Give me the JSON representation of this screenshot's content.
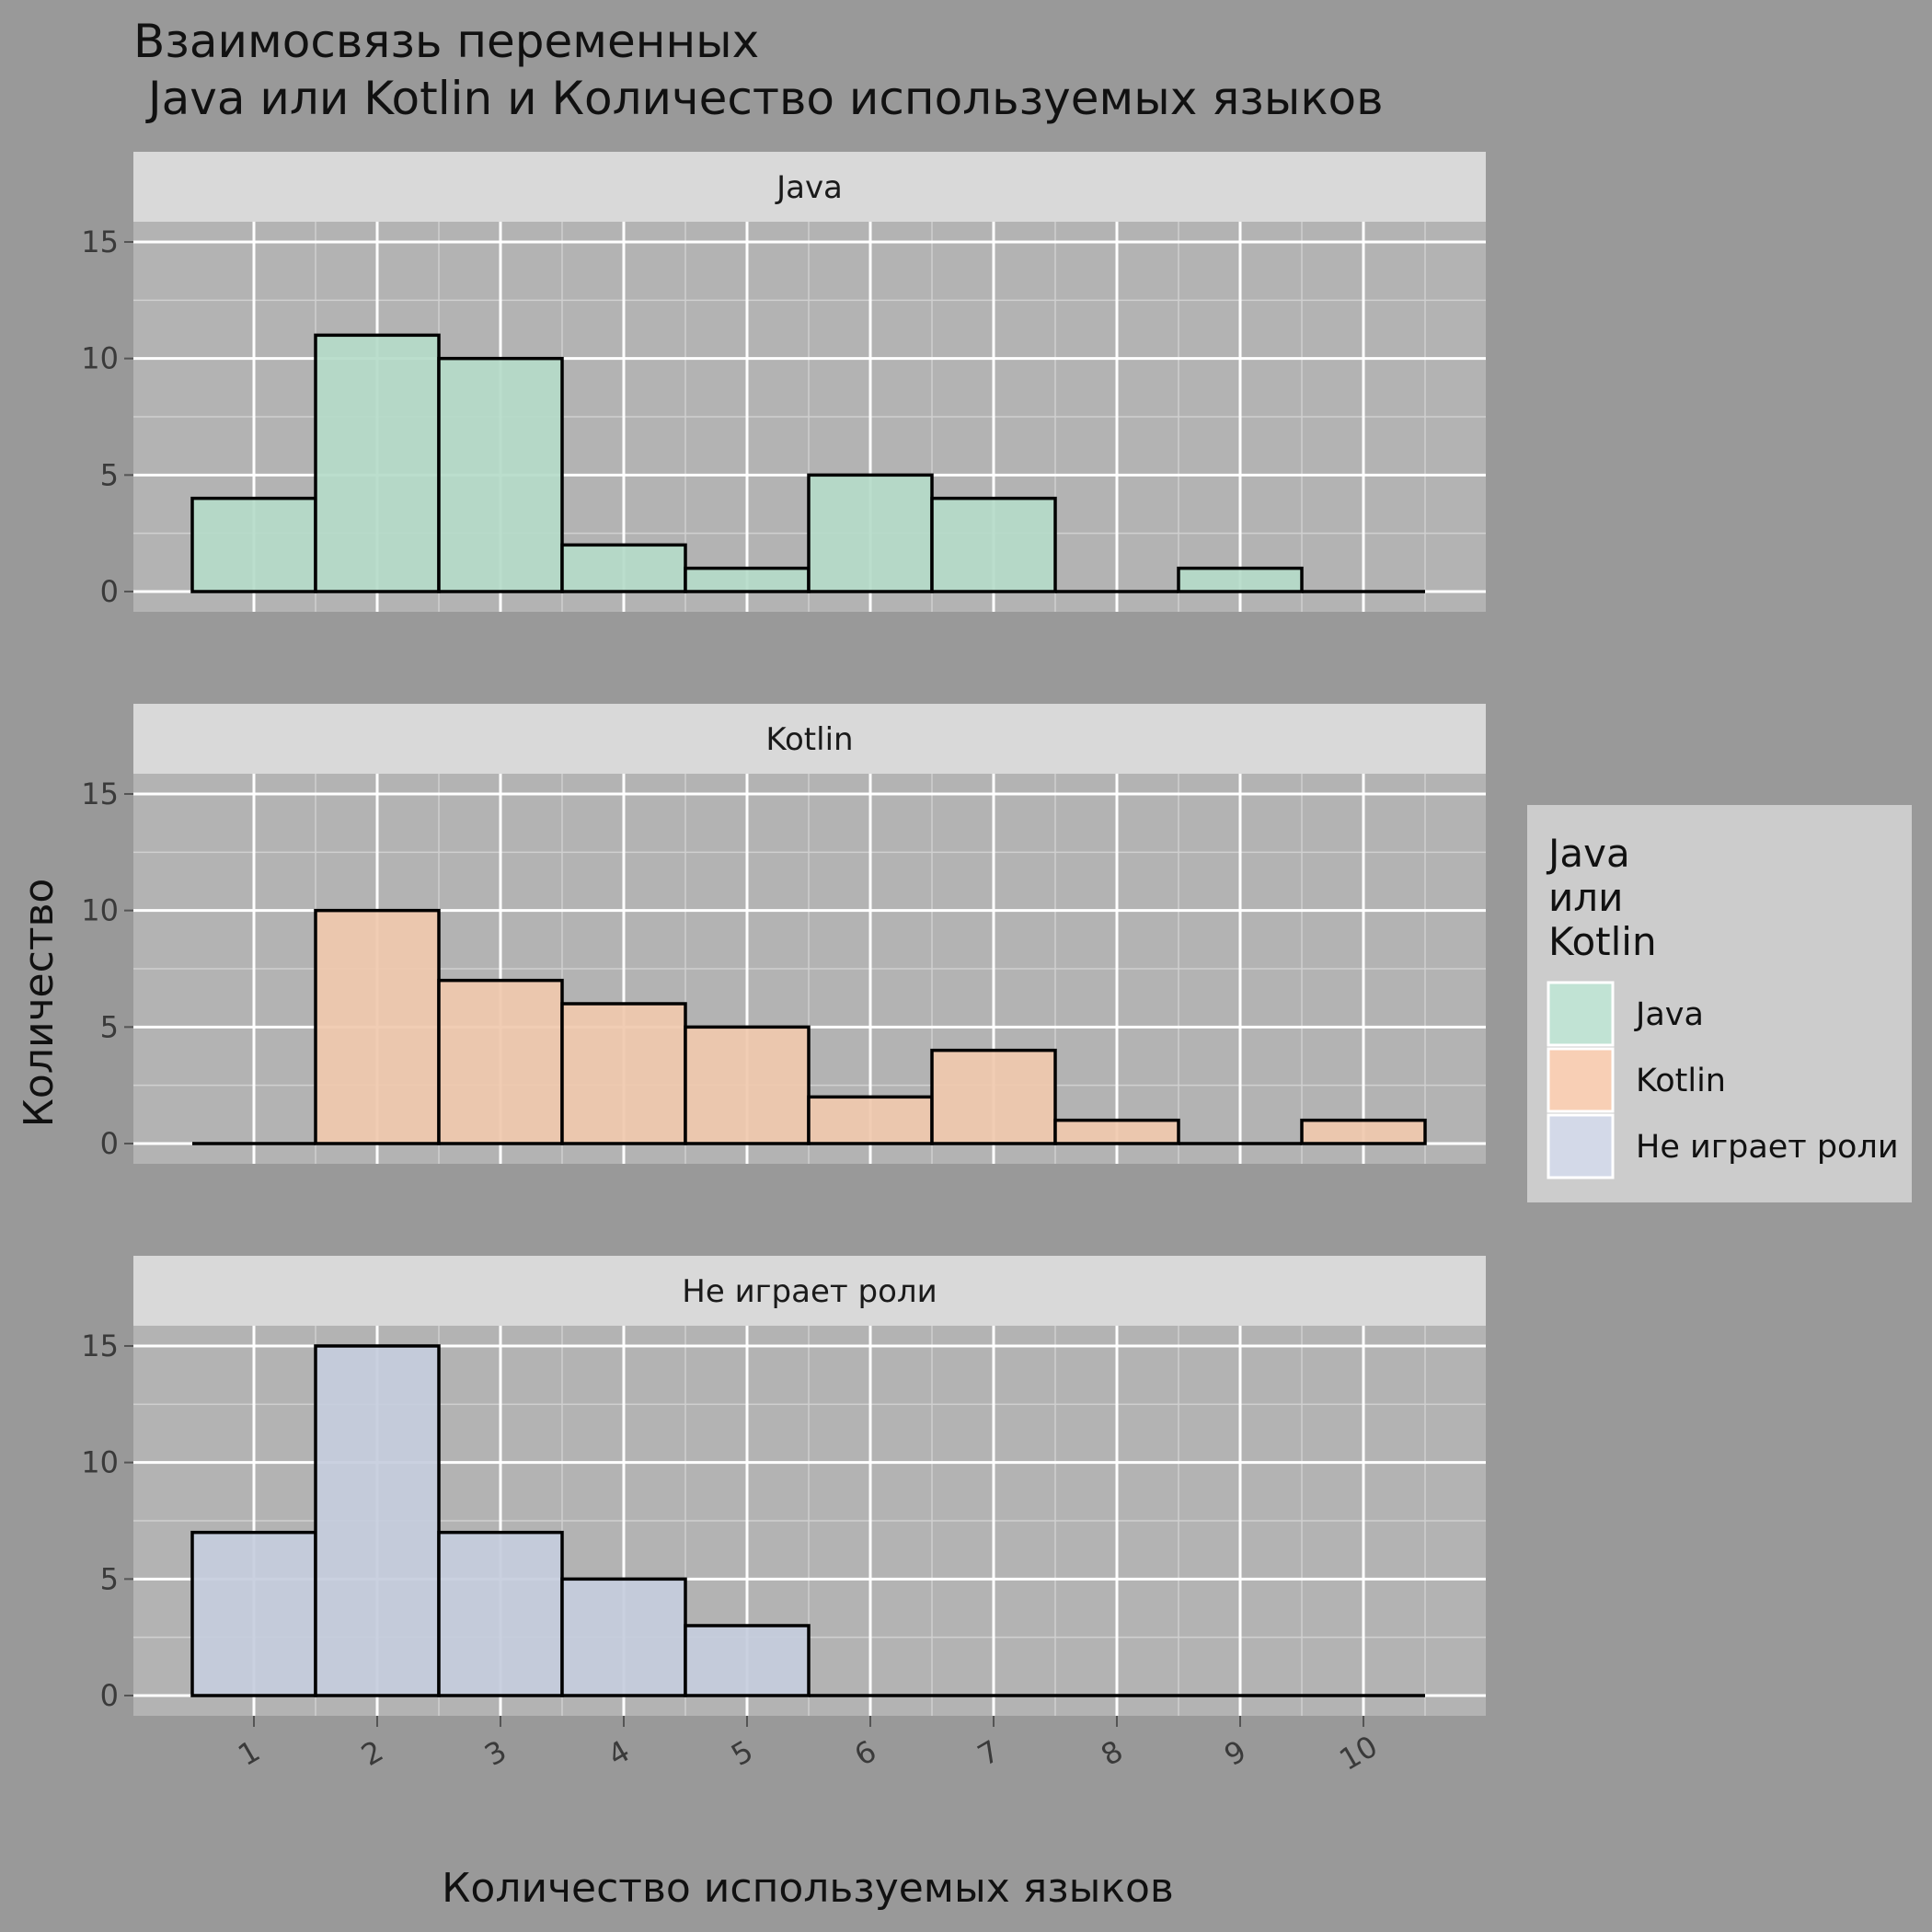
{
  "title_line1": "Взаимосвязь переменных",
  "title_line2": " Java или Kotlin и Количество используемых языков",
  "xlabel": "Количество используемых языков",
  "ylabel": "Количество",
  "legend": {
    "title_lines": [
      "Java",
      "или",
      "Kotlin"
    ],
    "items": [
      {
        "label": "Java",
        "color": "#c1e3d4"
      },
      {
        "label": "Kotlin",
        "color": "#f8cfb5"
      },
      {
        "label": "Не играет роли",
        "color": "#d3d9e8"
      }
    ]
  },
  "chart_data": {
    "type": "bar",
    "x": [
      1,
      2,
      3,
      4,
      5,
      6,
      7,
      8,
      9,
      10
    ],
    "xticks": [
      "1",
      "2",
      "3",
      "4",
      "5",
      "6",
      "7",
      "8",
      "9",
      "10"
    ],
    "yticks": [
      "0",
      "5",
      "10",
      "15"
    ],
    "ylim": [
      0,
      15
    ],
    "grid": true,
    "legend_position": "right",
    "facets": [
      {
        "label": "Java",
        "color": "#b5dbc9",
        "values": [
          4,
          11,
          10,
          2,
          1,
          5,
          4,
          0,
          1,
          0
        ]
      },
      {
        "label": "Kotlin",
        "color": "#f0c9ae",
        "values": [
          0,
          10,
          7,
          6,
          5,
          2,
          4,
          1,
          0,
          1
        ]
      },
      {
        "label": "Не играет роли",
        "color": "#c6cddd",
        "values": [
          7,
          15,
          7,
          5,
          3,
          0,
          0,
          0,
          0,
          0
        ]
      }
    ]
  }
}
